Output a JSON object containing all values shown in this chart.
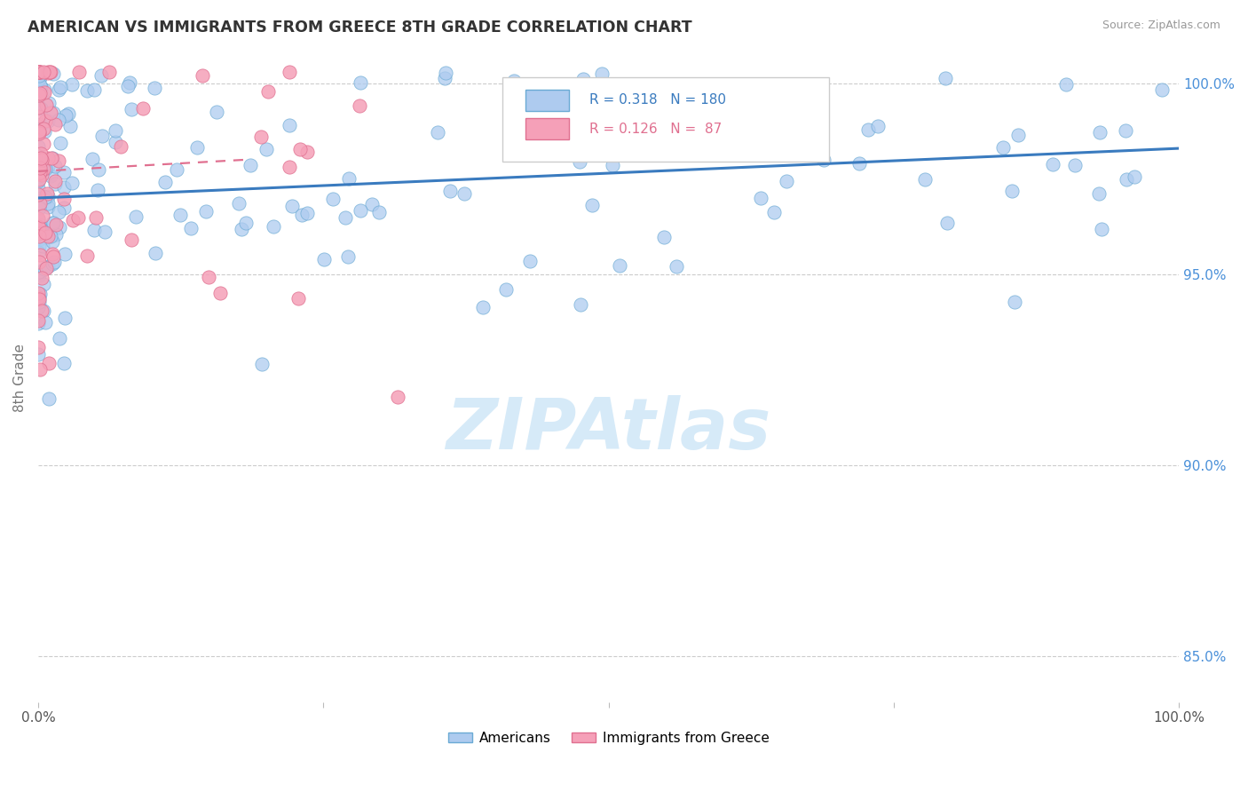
{
  "title": "AMERICAN VS IMMIGRANTS FROM GREECE 8TH GRADE CORRELATION CHART",
  "source_text": "Source: ZipAtlas.com",
  "ylabel": "8th Grade",
  "xlim": [
    0.0,
    1.0
  ],
  "ylim": [
    0.838,
    1.008
  ],
  "ytick_positions": [
    0.85,
    0.9,
    0.95,
    1.0
  ],
  "ytick_labels": [
    "85.0%",
    "90.0%",
    "95.0%",
    "100.0%"
  ],
  "american_color": "#aecbef",
  "american_edge_color": "#6aaad4",
  "american_line_color": "#3a7bbf",
  "greek_color": "#f5a0b8",
  "greek_edge_color": "#e07090",
  "greek_line_color": "#e07090",
  "watermark_color": "#d6eaf8",
  "title_color": "#333333",
  "axis_label_color": "#777777",
  "tick_color_right": "#4a90d9",
  "grid_color": "#cccccc",
  "american_R": 0.318,
  "american_N": 180,
  "greek_R": 0.126,
  "greek_N": 87,
  "am_trend_x0": 0.0,
  "am_trend_y0": 0.97,
  "am_trend_x1": 1.0,
  "am_trend_y1": 0.983,
  "gr_trend_x0": 0.0,
  "gr_trend_y0": 0.977,
  "gr_trend_x1": 0.18,
  "gr_trend_y1": 0.98
}
